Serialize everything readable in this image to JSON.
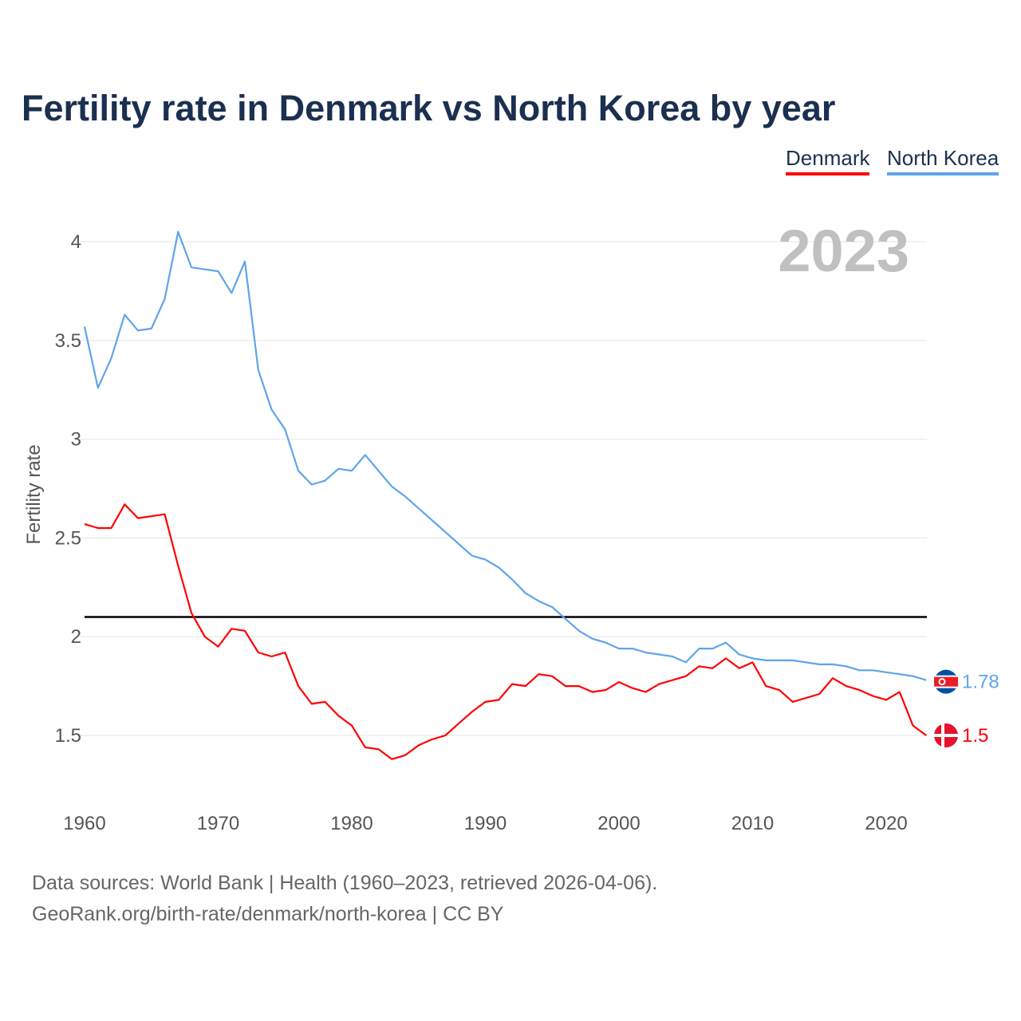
{
  "title": "Fertility rate in Denmark vs North Korea by year",
  "source_line1": "Data sources: World Bank | Health (1960–2023, retrieved 2026-04-06).",
  "source_line2": "GeoRank.org/birth-rate/denmark/north-korea | CC BY",
  "chart_data": {
    "type": "line",
    "title": "Fertility rate in Denmark vs North Korea by year",
    "ylabel": "Fertility rate",
    "xlabel": "",
    "year_watermark": "2023",
    "xlim": [
      1960,
      2023
    ],
    "ylim": [
      1.2,
      4.1
    ],
    "xticks": [
      "1960",
      "1970",
      "1980",
      "1990",
      "2000",
      "2010",
      "2020"
    ],
    "yticks": [
      "1.5",
      "2",
      "2.5",
      "3",
      "3.5",
      "4"
    ],
    "reference_line": 2.1,
    "grid": true,
    "legend_position": "top-right",
    "x": [
      1960,
      1961,
      1962,
      1963,
      1964,
      1965,
      1966,
      1967,
      1968,
      1969,
      1970,
      1971,
      1972,
      1973,
      1974,
      1975,
      1976,
      1977,
      1978,
      1979,
      1980,
      1981,
      1982,
      1983,
      1984,
      1985,
      1986,
      1987,
      1988,
      1989,
      1990,
      1991,
      1992,
      1993,
      1994,
      1995,
      1996,
      1997,
      1998,
      1999,
      2000,
      2001,
      2002,
      2003,
      2004,
      2005,
      2006,
      2007,
      2008,
      2009,
      2010,
      2011,
      2012,
      2013,
      2014,
      2015,
      2016,
      2017,
      2018,
      2019,
      2020,
      2021,
      2022,
      2023
    ],
    "series": [
      {
        "name": "Denmark",
        "color": "#ff0000",
        "end_label": "1.5",
        "values": [
          2.57,
          2.55,
          2.55,
          2.67,
          2.6,
          2.61,
          2.62,
          2.36,
          2.12,
          2.0,
          1.95,
          2.04,
          2.03,
          1.92,
          1.9,
          1.92,
          1.75,
          1.66,
          1.67,
          1.6,
          1.55,
          1.44,
          1.43,
          1.38,
          1.4,
          1.45,
          1.48,
          1.5,
          1.56,
          1.62,
          1.67,
          1.68,
          1.76,
          1.75,
          1.81,
          1.8,
          1.75,
          1.75,
          1.72,
          1.73,
          1.77,
          1.74,
          1.72,
          1.76,
          1.78,
          1.8,
          1.85,
          1.84,
          1.89,
          1.84,
          1.87,
          1.75,
          1.73,
          1.67,
          1.69,
          1.71,
          1.79,
          1.75,
          1.73,
          1.7,
          1.68,
          1.72,
          1.55,
          1.5
        ]
      },
      {
        "name": "North Korea",
        "color": "#5fa4ec",
        "end_label": "1.78",
        "values": [
          3.57,
          3.26,
          3.41,
          3.63,
          3.55,
          3.56,
          3.71,
          4.05,
          3.87,
          3.86,
          3.85,
          3.74,
          3.9,
          3.35,
          3.15,
          3.05,
          2.84,
          2.77,
          2.79,
          2.85,
          2.84,
          2.92,
          2.84,
          2.76,
          2.71,
          2.65,
          2.59,
          2.53,
          2.47,
          2.41,
          2.39,
          2.35,
          2.29,
          2.22,
          2.18,
          2.15,
          2.09,
          2.03,
          1.99,
          1.97,
          1.94,
          1.94,
          1.92,
          1.91,
          1.9,
          1.87,
          1.94,
          1.94,
          1.97,
          1.91,
          1.89,
          1.88,
          1.88,
          1.88,
          1.87,
          1.86,
          1.86,
          1.85,
          1.83,
          1.83,
          1.82,
          1.81,
          1.8,
          1.78
        ]
      }
    ]
  }
}
